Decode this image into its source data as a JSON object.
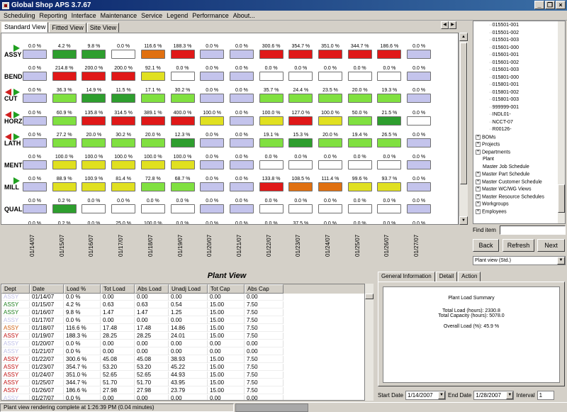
{
  "window": {
    "title": "Global Shop APS 3.7.67"
  },
  "menu": [
    "Scheduling",
    "Reporting",
    "Interface",
    "Maintenance",
    "Service",
    "Legend",
    "Performance",
    "About..."
  ],
  "view_tabs": [
    "Standard View",
    "Fitted View",
    "Site View"
  ],
  "dates": [
    "01/14/07",
    "01/15/07",
    "01/16/07",
    "01/17/07",
    "01/18/07",
    "01/19/07",
    "01/20/07",
    "01/21/07",
    "01/22/07",
    "01/23/07",
    "01/24/07",
    "01/25/07",
    "01/26/07",
    "01/27/07"
  ],
  "colors": {
    "lav": "#c4c4ec",
    "white": "#ffffff",
    "dgreen": "#2e9e2e",
    "lgreen": "#80e040",
    "yellow": "#e0e020",
    "orange": "#e07010",
    "red": "#e01818"
  },
  "grid_rows": [
    {
      "dept": "ASSY",
      "flag": "green",
      "values": [
        "0.0 %",
        "4.2 %",
        "9.8 %",
        "0.0 %",
        "116.6 %",
        "188.3 %",
        "0.0 %",
        "0.0 %",
        "300.6 %",
        "354.7 %",
        "351.0 %",
        "344.7 %",
        "186.6 %",
        "0.0 %"
      ],
      "levels": [
        "lav",
        "dgreen",
        "dgreen",
        "white",
        "orange",
        "red",
        "lav",
        "lav",
        "red",
        "red",
        "red",
        "red",
        "red",
        "lav"
      ]
    },
    {
      "dept": "BEND",
      "flag": "none",
      "values": [
        "0.0 %",
        "214.8 %",
        "200.0 %",
        "200.0 %",
        "92.1 %",
        "0.0 %",
        "0.0 %",
        "0.0 %",
        "0.0 %",
        "0.0 %",
        "0.0 %",
        "0.0 %",
        "0.0 %",
        "0.0 %"
      ],
      "levels": [
        "lav",
        "red",
        "red",
        "red",
        "yellow",
        "white",
        "lav",
        "lav",
        "white",
        "white",
        "white",
        "white",
        "white",
        "lav"
      ]
    },
    {
      "dept": "CUT",
      "flag": "both",
      "values": [
        "0.0 %",
        "36.3 %",
        "14.9 %",
        "11.5 %",
        "17.1 %",
        "30.2 %",
        "0.0 %",
        "0.0 %",
        "35.7 %",
        "24.4 %",
        "23.5 %",
        "20.0 %",
        "19.3 %",
        "0.0 %"
      ],
      "levels": [
        "lav",
        "lgreen",
        "dgreen",
        "dgreen",
        "lgreen",
        "lgreen",
        "lav",
        "lav",
        "lgreen",
        "lgreen",
        "lgreen",
        "lgreen",
        "lgreen",
        "lav"
      ]
    },
    {
      "dept": "HORZ",
      "flag": "both",
      "values": [
        "0.0 %",
        "60.9 %",
        "135.8 %",
        "314.5 %",
        "389.1 %",
        "400.0 %",
        "100.0 %",
        "0.0 %",
        "100.0 %",
        "127.0 %",
        "100.0 %",
        "50.0 %",
        "21.5 %",
        "0.0 %"
      ],
      "levels": [
        "lav",
        "lgreen",
        "red",
        "red",
        "red",
        "red",
        "yellow",
        "lav",
        "yellow",
        "red",
        "yellow",
        "lgreen",
        "dgreen",
        "white"
      ]
    },
    {
      "dept": "LATH",
      "flag": "both",
      "values": [
        "0.0 %",
        "27.2 %",
        "20.0 %",
        "30.2 %",
        "20.0 %",
        "12.3 %",
        "0.0 %",
        "0.0 %",
        "19.1 %",
        "15.3 %",
        "20.0 %",
        "19.4 %",
        "26.5 %",
        "0.0 %"
      ],
      "levels": [
        "lav",
        "lgreen",
        "lgreen",
        "lgreen",
        "lgreen",
        "dgreen",
        "lav",
        "lav",
        "lgreen",
        "dgreen",
        "lgreen",
        "lgreen",
        "lgreen",
        "lav"
      ]
    },
    {
      "dept": "MENT",
      "flag": "none",
      "values": [
        "0.0 %",
        "100.0 %",
        "100.0 %",
        "100.0 %",
        "100.0 %",
        "100.0 %",
        "0.0 %",
        "0.0 %",
        "0.0 %",
        "0.0 %",
        "0.0 %",
        "0.0 %",
        "0.0 %",
        "0.0 %"
      ],
      "levels": [
        "lav",
        "yellow",
        "yellow",
        "yellow",
        "yellow",
        "yellow",
        "lav",
        "lav",
        "white",
        "white",
        "white",
        "white",
        "white",
        "lav"
      ]
    },
    {
      "dept": "MILL",
      "flag": "green",
      "values": [
        "0.0 %",
        "88.9 %",
        "100.9 %",
        "81.4 %",
        "72.8 %",
        "68.7 %",
        "0.0 %",
        "0.0 %",
        "133.8 %",
        "108.5 %",
        "111.4 %",
        "99.6 %",
        "93.7 %",
        "0.0 %"
      ],
      "levels": [
        "lav",
        "yellow",
        "yellow",
        "yellow",
        "lgreen",
        "lgreen",
        "lav",
        "lav",
        "red",
        "orange",
        "orange",
        "yellow",
        "yellow",
        "lav"
      ]
    },
    {
      "dept": "QUAL",
      "flag": "none",
      "values": [
        "0.0 %",
        "0.2 %",
        "0.0 %",
        "0.0 %",
        "0.0 %",
        "0.0 %",
        "0.0 %",
        "0.0 %",
        "0.0 %",
        "0.0 %",
        "0.0 %",
        "0.0 %",
        "0.0 %",
        "0.0 %"
      ],
      "levels": [
        "lav",
        "dgreen",
        "white",
        "white",
        "white",
        "white",
        "lav",
        "lav",
        "white",
        "white",
        "white",
        "white",
        "white",
        "lav"
      ]
    },
    {
      "dept": "",
      "flag": "none",
      "values": [
        "0.0 %",
        "0.2 %",
        "0.0 %",
        "25.0 %",
        "100.0 %",
        "0.0 %",
        "0.0 %",
        "0.0 %",
        "0.0 %",
        "37.5 %",
        "0.0 %",
        "0.0 %",
        "0.0 %",
        "0.0 %"
      ],
      "levels": [
        "lav",
        "dgreen",
        "white",
        "lgreen",
        "yellow",
        "white",
        "lav",
        "lav",
        "white",
        "lgreen",
        "white",
        "white",
        "white",
        "lav"
      ]
    }
  ],
  "tree": [
    {
      "label": "015501-001",
      "type": "leaf"
    },
    {
      "label": "015501-002",
      "type": "leaf"
    },
    {
      "label": "015501-003",
      "type": "leaf"
    },
    {
      "label": "015601-000",
      "type": "leaf"
    },
    {
      "label": "015601-001",
      "type": "leaf"
    },
    {
      "label": "015601-002",
      "type": "leaf"
    },
    {
      "label": "015601-003",
      "type": "leaf"
    },
    {
      "label": "015801-000",
      "type": "leaf"
    },
    {
      "label": "015801-001",
      "type": "leaf"
    },
    {
      "label": "015801-002",
      "type": "leaf"
    },
    {
      "label": "015801-003",
      "type": "leaf"
    },
    {
      "label": "999999-001",
      "type": "leaf"
    },
    {
      "label": "INDL01-",
      "type": "leaf"
    },
    {
      "label": "NCCT-07",
      "type": "leaf"
    },
    {
      "label": "R00126-",
      "type": "leaf"
    },
    {
      "label": "BOMs",
      "type": "folder"
    },
    {
      "label": "Projects",
      "type": "folder"
    },
    {
      "label": "Departments",
      "type": "folder"
    },
    {
      "label": "Plant",
      "type": "item"
    },
    {
      "label": "Master Job Schedule",
      "type": "item"
    },
    {
      "label": "Master Part Schedule",
      "type": "folder"
    },
    {
      "label": "Master Customer Schedule",
      "type": "folder"
    },
    {
      "label": "Master WC/WG Views",
      "type": "folder"
    },
    {
      "label": "Master Resource Schedules",
      "type": "folder"
    },
    {
      "label": "Workgroups",
      "type": "folder"
    },
    {
      "label": "Employees",
      "type": "folder"
    }
  ],
  "find": {
    "label": "Find item",
    "value": ""
  },
  "nav": {
    "back": "Back",
    "refresh": "Refresh",
    "next": "Next"
  },
  "plant_select": "Plant view (Std.)",
  "plant_view": {
    "title": "Plant View",
    "columns": [
      "Dept",
      "Date",
      "Load %",
      "Tot Load",
      "Abs Load",
      "Unadj Load",
      "Tot Cap",
      "Abs Cap"
    ],
    "rows": [
      [
        "ASSY",
        "01/14/07",
        "0.0 %",
        "0.00",
        "0.00",
        "0.00",
        "0.00",
        "0.00"
      ],
      [
        "ASSY",
        "01/15/07",
        "4.2 %",
        "0.63",
        "0.63",
        "0.54",
        "15.00",
        "7.50"
      ],
      [
        "ASSY",
        "01/16/07",
        "9.8 %",
        "1.47",
        "1.47",
        "1.25",
        "15.00",
        "7.50"
      ],
      [
        "ASSY",
        "01/17/07",
        "0.0 %",
        "0.00",
        "0.00",
        "0.00",
        "15.00",
        "7.50"
      ],
      [
        "ASSY",
        "01/18/07",
        "116.6 %",
        "17.48",
        "17.48",
        "14.86",
        "15.00",
        "7.50"
      ],
      [
        "ASSY",
        "01/19/07",
        "188.3 %",
        "28.25",
        "28.25",
        "24.01",
        "15.00",
        "7.50"
      ],
      [
        "ASSY",
        "01/20/07",
        "0.0 %",
        "0.00",
        "0.00",
        "0.00",
        "0.00",
        "0.00"
      ],
      [
        "ASSY",
        "01/21/07",
        "0.0 %",
        "0.00",
        "0.00",
        "0.00",
        "0.00",
        "0.00"
      ],
      [
        "ASSY",
        "01/22/07",
        "300.6 %",
        "45.08",
        "45.08",
        "38.93",
        "15.00",
        "7.50"
      ],
      [
        "ASSY",
        "01/23/07",
        "354.7 %",
        "53.20",
        "53.20",
        "45.22",
        "15.00",
        "7.50"
      ],
      [
        "ASSY",
        "01/24/07",
        "351.0 %",
        "52.65",
        "52.65",
        "44.93",
        "15.00",
        "7.50"
      ],
      [
        "ASSY",
        "01/25/07",
        "344.7 %",
        "51.70",
        "51.70",
        "43.95",
        "15.00",
        "7.50"
      ],
      [
        "ASSY",
        "01/26/07",
        "186.6 %",
        "27.98",
        "27.98",
        "23.79",
        "15.00",
        "7.50"
      ],
      [
        "ASSY",
        "01/27/07",
        "0.0 %",
        "0.00",
        "0.00",
        "0.00",
        "0.00",
        "0.00"
      ]
    ],
    "dept_colors": [
      "#c0c0e8",
      "#208020",
      "#208020",
      "#c0c0e8",
      "#d06010",
      "#c01010",
      "#c0c0e8",
      "#c0c0e8",
      "#c01010",
      "#c01010",
      "#c01010",
      "#c01010",
      "#c01010",
      "#c0c0e8"
    ]
  },
  "right_tabs": [
    "General Information",
    "Detail",
    "Action"
  ],
  "summary": {
    "heading": "Plant Load Summary",
    "total_load": "Total Load (hours): 2330.8",
    "total_capacity": "Total Capacity (hours): 5078.0",
    "overall_load": "Overall Load (%): 45.9 %"
  },
  "range": {
    "start_label": "Start Date",
    "start": "1/14/2007",
    "end_label": "End Date",
    "end": "1/28/2007",
    "interval_label": "Interval",
    "interval": "1"
  },
  "status": "Plant view rendering complete at 1:26:39 PM  (0.04 minutes)"
}
